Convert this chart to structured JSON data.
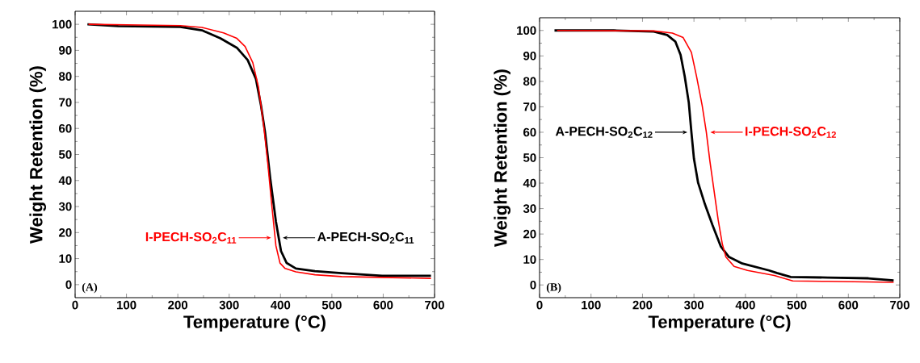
{
  "chart_data": [
    {
      "type": "line",
      "xlabel": "Temperature (°C)",
      "ylabel": "Weight Retention (%)",
      "xlim": [
        0,
        700
      ],
      "ylim": [
        -5,
        105
      ],
      "xticks": [
        0,
        100,
        200,
        300,
        400,
        500,
        600,
        700
      ],
      "yticks": [
        0,
        10,
        20,
        30,
        40,
        50,
        60,
        70,
        80,
        90,
        100
      ],
      "annotations": [
        "(A)"
      ],
      "series": [
        {
          "name": "A-PECH-SO$_{2}$C$_{11}$",
          "color": "#000000",
          "x": [
            24,
            84,
            205,
            247,
            283,
            315,
            336,
            352,
            362,
            370,
            380,
            391,
            401,
            412,
            430,
            467,
            519,
            598,
            693
          ],
          "values": [
            100,
            99.3,
            99.0,
            97.7,
            94.6,
            91.0,
            86.3,
            79.1,
            68.8,
            58.4,
            40.8,
            24.3,
            12.9,
            8.3,
            6.2,
            5.2,
            4.4,
            3.4,
            3.4
          ]
        },
        {
          "name": "I-PECH-SO$_{2}$C$_{11}$",
          "color": "#ff0000",
          "x": [
            26,
            100,
            205,
            247,
            289,
            315,
            331,
            346,
            357,
            367,
            375,
            383,
            391,
            399,
            409,
            430,
            467,
            519,
            598,
            693
          ],
          "values": [
            100,
            99.8,
            99.5,
            98.8,
            96.7,
            94.6,
            91.5,
            85.3,
            76,
            61.5,
            47.1,
            30.5,
            15,
            8.3,
            6.2,
            4.9,
            3.8,
            3.1,
            2.8,
            2.4
          ]
        }
      ]
    },
    {
      "type": "line",
      "xlabel": "Temperature (°C)",
      "ylabel": "Weight Retention (%)",
      "xlim": [
        0,
        700
      ],
      "ylim": [
        -5,
        105
      ],
      "xticks": [
        0,
        100,
        200,
        300,
        400,
        500,
        600,
        700
      ],
      "yticks": [
        0,
        10,
        20,
        30,
        40,
        50,
        60,
        70,
        80,
        90,
        100
      ],
      "annotations": [
        "(B)"
      ],
      "series": [
        {
          "name": "A-PECH-SO$_{2}$C$_{12}$",
          "color": "#000000",
          "x": [
            29,
            144,
            222,
            248,
            264,
            274,
            282,
            290,
            295,
            300,
            308,
            321,
            336,
            352,
            368,
            394,
            446,
            461,
            488,
            560,
            639,
            688
          ],
          "values": [
            100,
            100,
            99.6,
            98.2,
            95.6,
            90.4,
            82,
            71.6,
            60.1,
            49.6,
            40.2,
            31.9,
            23.5,
            15.2,
            11,
            8.4,
            5.7,
            4.7,
            3.1,
            2.9,
            2.6,
            1.8
          ]
        },
        {
          "name": "I-PECH-SO$_{2}$C$_{12}$",
          "color": "#ff0000",
          "x": [
            34,
            222,
            258,
            279,
            295,
            305,
            316,
            324,
            331,
            339,
            347,
            355,
            362,
            378,
            404,
            456,
            492,
            560,
            688
          ],
          "values": [
            100,
            99.8,
            99,
            97.2,
            91.4,
            82,
            70.5,
            60.1,
            48.6,
            37.1,
            25.6,
            16.2,
            11,
            7.3,
            5.7,
            3.7,
            1.6,
            1.4,
            1
          ]
        }
      ]
    }
  ]
}
